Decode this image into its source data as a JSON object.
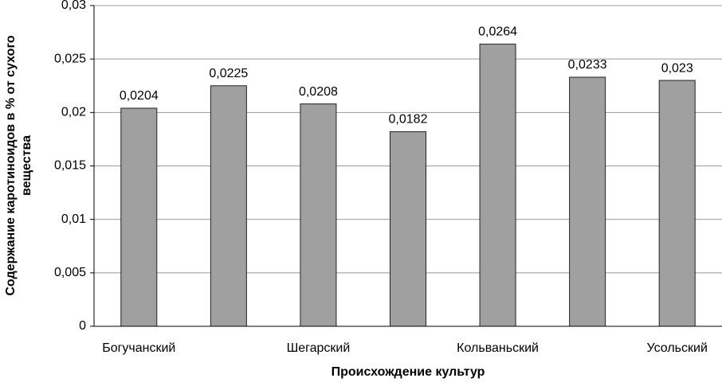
{
  "chart_data": {
    "type": "bar",
    "x_label": "Происхождение культур",
    "y_label": [
      "Содержание каротиноидов в % от сухого",
      "вещества"
    ],
    "categories": [
      "Богучанский",
      null,
      "Шегарский",
      null,
      "Кольваньский",
      null,
      "Усольский"
    ],
    "values": [
      0.0204,
      0.0225,
      0.0208,
      0.0182,
      0.0264,
      0.0233,
      0.023
    ],
    "value_labels": [
      "0,0204",
      "0,0225",
      "0,0208",
      "0,0182",
      "0,0264",
      "0,0233",
      "0,023"
    ],
    "color": "#a0a0a0",
    "ylim": [
      0,
      0.03
    ],
    "yticks": [
      0,
      {
        "value": 0.005,
        "label": "0,005"
      },
      {
        "value": 0.01,
        "label": "0,01"
      },
      {
        "value": 0.015,
        "label": "0,015"
      },
      {
        "value": 0.02,
        "label": "0,02"
      },
      {
        "value": 0.025,
        "label": "0,025"
      },
      {
        "value": 0.03,
        "label": "0,03"
      }
    ],
    "grid": true
  }
}
